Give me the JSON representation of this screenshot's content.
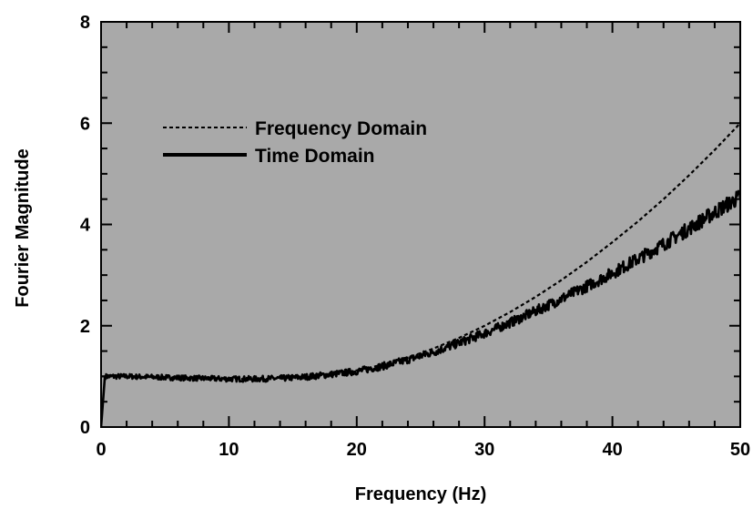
{
  "chart_data": {
    "type": "line",
    "title": "",
    "xlabel": "Frequency (Hz)",
    "ylabel": "Fourier Magnitude",
    "xlim": [
      0,
      50
    ],
    "ylim": [
      0,
      8
    ],
    "x_ticks": [
      0,
      10,
      20,
      30,
      40,
      50
    ],
    "y_ticks": [
      0,
      2,
      4,
      6,
      8
    ],
    "x_tick_labels": [
      "0",
      "10",
      "20",
      "30",
      "40",
      "50"
    ],
    "y_tick_labels": [
      "0",
      "2",
      "4",
      "6",
      "8"
    ],
    "grid": false,
    "legend_position": "upper-left",
    "plot_background": "#a9a9a9",
    "series": [
      {
        "name": "Frequency Domain",
        "style": "dotted",
        "color": "#000000",
        "x": [
          0,
          2,
          5,
          8,
          10,
          12,
          14,
          16,
          18,
          20,
          22,
          24,
          26,
          28,
          30,
          32,
          34,
          36,
          38,
          40,
          42,
          44,
          46,
          48,
          50
        ],
        "y": [
          1.0,
          1.0,
          0.98,
          0.96,
          0.95,
          0.95,
          0.96,
          0.99,
          1.04,
          1.12,
          1.23,
          1.37,
          1.55,
          1.76,
          2.0,
          2.27,
          2.57,
          2.9,
          3.26,
          3.65,
          4.06,
          4.5,
          4.97,
          5.47,
          6.0
        ]
      },
      {
        "name": "Time Domain",
        "style": "solid-noisy",
        "color": "#000000",
        "x": [
          0,
          0.3,
          2,
          5,
          8,
          10,
          12,
          14,
          16,
          18,
          20,
          22,
          24,
          26,
          28,
          30,
          32,
          34,
          36,
          38,
          40,
          42,
          44,
          46,
          48,
          50
        ],
        "y": [
          0,
          1.0,
          1.0,
          0.98,
          0.96,
          0.95,
          0.95,
          0.96,
          0.99,
          1.04,
          1.1,
          1.2,
          1.33,
          1.48,
          1.66,
          1.85,
          2.06,
          2.29,
          2.53,
          2.78,
          3.04,
          3.32,
          3.61,
          3.92,
          4.24,
          4.55
        ]
      }
    ]
  }
}
